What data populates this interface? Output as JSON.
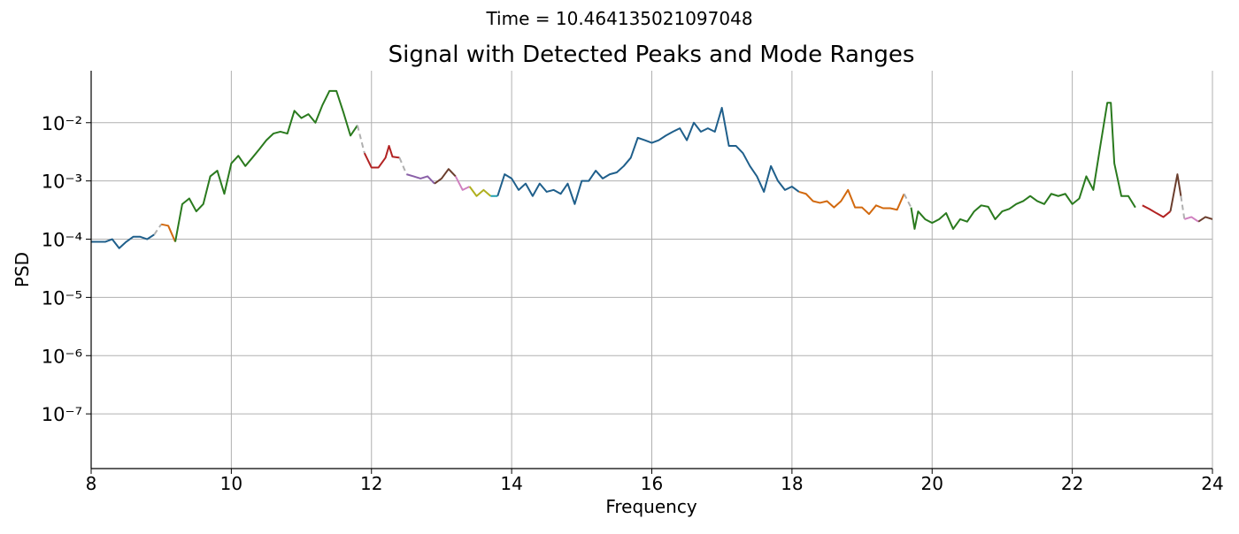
{
  "chart_data": {
    "type": "line",
    "suptitle": "Time = 10.464135021097048",
    "title": "Signal with Detected Peaks and Mode Ranges",
    "xlabel": "Frequency",
    "ylabel": "PSD",
    "log_y": true,
    "grid": true,
    "xlim": [
      8,
      24
    ],
    "xticks": [
      8,
      10,
      12,
      14,
      16,
      18,
      20,
      22,
      24
    ],
    "ylim": [
      1.15e-08,
      0.078
    ],
    "yticks": [
      {
        "value": 1e-07,
        "label": "10⁻⁷"
      },
      {
        "value": 1e-06,
        "label": "10⁻⁶"
      },
      {
        "value": 1e-05,
        "label": "10⁻⁵"
      },
      {
        "value": 0.0001,
        "label": "10⁻⁴"
      },
      {
        "value": 0.001,
        "label": "10⁻³"
      },
      {
        "value": 0.01,
        "label": "10⁻²"
      }
    ],
    "series": [
      {
        "color": "#1f5f8b",
        "x": [
          8.0,
          8.1,
          8.2,
          8.3,
          8.4,
          8.5,
          8.6,
          8.7,
          8.8,
          8.9
        ],
        "values": [
          9e-05,
          9e-05,
          9e-05,
          0.0001,
          7e-05,
          9e-05,
          0.00011,
          0.00011,
          0.0001,
          0.00012
        ]
      },
      {
        "color": "#b0b0b0",
        "dashed": true,
        "x": [
          8.9,
          9.0
        ],
        "values": [
          0.00012,
          0.00018
        ]
      },
      {
        "color": "#d2690e",
        "x": [
          9.0,
          9.1,
          9.2
        ],
        "values": [
          0.00018,
          0.00017,
          9e-05
        ]
      },
      {
        "color": "#2a7a1e",
        "x": [
          9.2,
          9.3,
          9.4,
          9.5,
          9.6,
          9.7,
          9.8,
          9.9,
          10.0,
          10.1,
          10.2,
          10.3,
          10.4,
          10.5,
          10.6,
          10.7,
          10.8,
          10.9,
          11.0,
          11.1,
          11.2,
          11.3,
          11.4,
          11.5,
          11.6,
          11.7,
          11.8
        ],
        "values": [
          9e-05,
          0.0004,
          0.0005,
          0.0003,
          0.0004,
          0.0012,
          0.0015,
          0.0006,
          0.002,
          0.0027,
          0.0018,
          0.0025,
          0.0035,
          0.005,
          0.0065,
          0.007,
          0.0065,
          0.016,
          0.012,
          0.014,
          0.01,
          0.02,
          0.035,
          0.035,
          0.015,
          0.006,
          0.009
        ]
      },
      {
        "color": "#b0b0b0",
        "dashed": true,
        "x": [
          11.8,
          11.9
        ],
        "values": [
          0.009,
          0.003
        ]
      },
      {
        "color": "#b22222",
        "x": [
          11.9,
          12.0,
          12.1,
          12.2,
          12.25,
          12.3,
          12.4
        ],
        "values": [
          0.003,
          0.0017,
          0.0017,
          0.0025,
          0.004,
          0.0026,
          0.0025
        ]
      },
      {
        "color": "#b0b0b0",
        "dashed": true,
        "x": [
          12.4,
          12.5
        ],
        "values": [
          0.0025,
          0.0013
        ]
      },
      {
        "color": "#8a60a8",
        "x": [
          12.5,
          12.6,
          12.7,
          12.8,
          12.9
        ],
        "values": [
          0.0013,
          0.0012,
          0.0011,
          0.0012,
          0.0009
        ]
      },
      {
        "color": "#6b3e2e",
        "x": [
          12.9,
          13.0,
          13.1,
          13.2
        ],
        "values": [
          0.0009,
          0.0011,
          0.0016,
          0.0012
        ]
      },
      {
        "color": "#d080c0",
        "x": [
          13.2,
          13.3,
          13.4
        ],
        "values": [
          0.0012,
          0.0007,
          0.0008
        ]
      },
      {
        "color": "#b0b020",
        "x": [
          13.4,
          13.5,
          13.6,
          13.7
        ],
        "values": [
          0.0008,
          0.00055,
          0.0007,
          0.00055
        ]
      },
      {
        "color": "#20a0b0",
        "x": [
          13.7,
          13.8
        ],
        "values": [
          0.00055,
          0.00055
        ]
      },
      {
        "color": "#1f5f8b",
        "x": [
          13.8,
          13.9,
          14.0,
          14.1,
          14.2,
          14.3,
          14.4,
          14.5,
          14.6,
          14.7,
          14.8,
          14.9,
          15.0,
          15.1,
          15.2,
          15.3,
          15.4,
          15.5,
          15.6,
          15.7,
          15.8,
          15.9,
          16.0,
          16.1,
          16.2,
          16.3,
          16.4,
          16.5,
          16.6,
          16.7,
          16.8,
          16.9,
          17.0,
          17.1,
          17.2,
          17.3,
          17.4,
          17.5,
          17.6,
          17.7,
          17.8,
          17.9,
          18.0,
          18.1
        ],
        "values": [
          0.00055,
          0.0013,
          0.0011,
          0.0007,
          0.0009,
          0.00055,
          0.0009,
          0.00065,
          0.0007,
          0.0006,
          0.0009,
          0.0004,
          0.001,
          0.001,
          0.0015,
          0.0011,
          0.0013,
          0.0014,
          0.0018,
          0.0025,
          0.0055,
          0.005,
          0.0045,
          0.005,
          0.006,
          0.007,
          0.008,
          0.005,
          0.01,
          0.007,
          0.008,
          0.007,
          0.018,
          0.004,
          0.004,
          0.003,
          0.0018,
          0.0012,
          0.00065,
          0.0018,
          0.001,
          0.0007,
          0.0008,
          0.00065
        ]
      },
      {
        "color": "#d2690e",
        "x": [
          18.1,
          18.2,
          18.3,
          18.4,
          18.5,
          18.6,
          18.7,
          18.8,
          18.9,
          19.0,
          19.1,
          19.2,
          19.3,
          19.4,
          19.5,
          19.6
        ],
        "values": [
          0.00065,
          0.0006,
          0.00045,
          0.00042,
          0.00045,
          0.00035,
          0.00045,
          0.0007,
          0.00035,
          0.00035,
          0.00027,
          0.00038,
          0.00034,
          0.00034,
          0.00032,
          0.0006
        ]
      },
      {
        "color": "#b0b0b0",
        "dashed": true,
        "x": [
          19.6,
          19.7
        ],
        "values": [
          0.0006,
          0.00035
        ]
      },
      {
        "color": "#2a7a1e",
        "x": [
          19.7,
          19.75,
          19.8,
          19.9,
          20.0,
          20.1,
          20.2,
          20.3,
          20.4,
          20.5,
          20.6,
          20.7,
          20.8,
          20.9,
          21.0,
          21.1,
          21.2,
          21.3,
          21.4,
          21.5,
          21.6,
          21.7,
          21.8,
          21.9,
          22.0,
          22.1,
          22.2,
          22.3,
          22.4,
          22.5,
          22.55,
          22.6,
          22.7,
          22.8,
          22.9
        ],
        "values": [
          0.00035,
          0.00015,
          0.0003,
          0.00022,
          0.00019,
          0.00022,
          0.00028,
          0.00015,
          0.00022,
          0.0002,
          0.0003,
          0.00038,
          0.00036,
          0.00022,
          0.0003,
          0.00033,
          0.0004,
          0.00045,
          0.00055,
          0.00045,
          0.0004,
          0.0006,
          0.00055,
          0.0006,
          0.0004,
          0.0005,
          0.0012,
          0.0007,
          0.004,
          0.022,
          0.022,
          0.002,
          0.00055,
          0.00055,
          0.00035
        ]
      },
      {
        "color": "#b22222",
        "x": [
          23.0,
          23.1,
          23.2,
          23.3,
          23.4
        ],
        "values": [
          0.00038,
          0.00033,
          0.00028,
          0.00024,
          0.0003
        ]
      },
      {
        "color": "#6b3e2e",
        "x": [
          23.4,
          23.5,
          23.55
        ],
        "values": [
          0.0003,
          0.0013,
          0.00055
        ]
      },
      {
        "color": "#b0b0b0",
        "dashed": true,
        "x": [
          23.55,
          23.6
        ],
        "values": [
          0.00055,
          0.00022
        ]
      },
      {
        "color": "#d080c0",
        "x": [
          23.6,
          23.7,
          23.8
        ],
        "values": [
          0.00022,
          0.00024,
          0.0002
        ]
      },
      {
        "color": "#6b3e2e",
        "x": [
          23.8,
          23.9,
          24.0
        ],
        "values": [
          0.0002,
          0.00024,
          0.00022
        ]
      }
    ]
  }
}
